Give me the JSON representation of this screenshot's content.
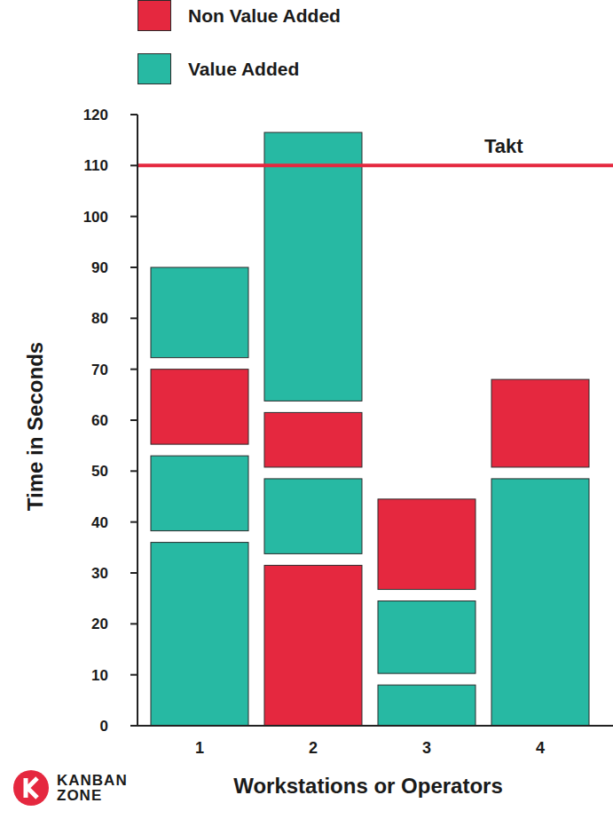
{
  "chart_data": {
    "type": "bar",
    "stacked": true,
    "categories": [
      "1",
      "2",
      "3",
      "4"
    ],
    "series": [
      {
        "name": "Non Value Added",
        "color": "#e5283f"
      },
      {
        "name": "Value Added",
        "color": "#27b9a3"
      }
    ],
    "segments": [
      [
        {
          "series": "Value Added",
          "value": 36
        },
        {
          "series": "Value Added",
          "value": 17
        },
        {
          "series": "Non Value Added",
          "value": 17
        },
        {
          "series": "Value Added",
          "value": 20
        }
      ],
      [
        {
          "series": "Non Value Added",
          "value": 31.5
        },
        {
          "series": "Value Added",
          "value": 17
        },
        {
          "series": "Non Value Added",
          "value": 13
        },
        {
          "series": "Value Added",
          "value": 55
        }
      ],
      [
        {
          "series": "Value Added",
          "value": 8
        },
        {
          "series": "Value Added",
          "value": 16.5
        },
        {
          "series": "Non Value Added",
          "value": 20
        }
      ],
      [
        {
          "series": "Value Added",
          "value": 48.5
        },
        {
          "series": "Non Value Added",
          "value": 19.5
        }
      ]
    ],
    "x_label": "Workstations or Operators",
    "y_label": "Time in Seconds",
    "ylim": [
      0,
      120
    ],
    "yticks": [
      0,
      10,
      20,
      30,
      40,
      50,
      60,
      70,
      80,
      90,
      100,
      110,
      120
    ],
    "reference_lines": [
      {
        "value": 110,
        "label": "Takt",
        "color": "#e5283f"
      }
    ],
    "legend": "top left",
    "logo": [
      "KANBAN",
      "ZONE"
    ]
  }
}
